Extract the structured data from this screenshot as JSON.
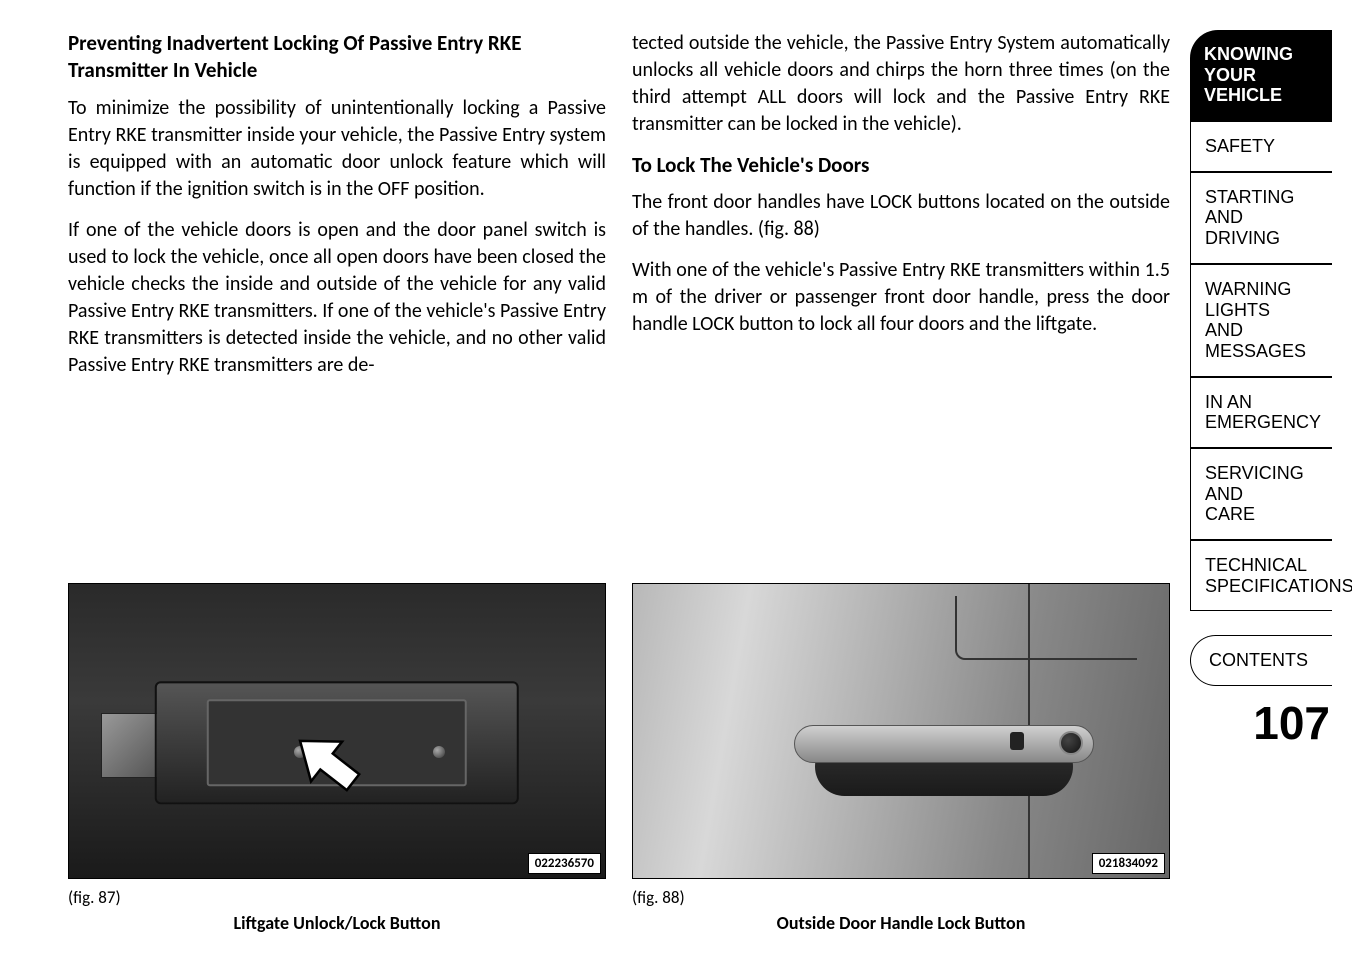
{
  "page_number": "107",
  "sidebar": {
    "active": "KNOWING\nYOUR\nVEHICLE",
    "items": [
      "SAFETY",
      "STARTING\nAND\nDRIVING",
      "WARNING\nLIGHTS\nAND\nMESSAGES",
      "IN AN\nEMERGENCY",
      "SERVICING\nAND\nCARE",
      "TECHNICAL\nSPECIFICATIONS"
    ],
    "contents": "CONTENTS"
  },
  "col1": {
    "heading": "Preventing Inadvertent Locking Of Passive Entry RKE Transmitter In Vehicle",
    "p1": "To minimize the possibility of unintentionally locking a Passive Entry RKE transmitter inside your vehicle, the Passive Entry system is equipped with an automatic door unlock feature which will function if the ignition switch is in the OFF position.",
    "p2_start": "If one of the vehicle doors is open and the door panel switch is used to lock the vehicle, once all open doors have been closed the vehicle checks the inside and outside of the vehicle for any valid Passive Entry RKE transmitters. If one of the vehicle's Passive Entry RKE transmitters is detected inside the vehicle, and no other valid Passive Entry RKE transmitters are de-"
  },
  "col2": {
    "p2_cont": "tected outside the vehicle, the Passive Entry System automatically unlocks all vehicle doors and chirps the horn three times (on the third attempt ALL doors will lock and the Passive Entry RKE transmitter can be locked in the vehicle).",
    "heading2": "To Lock The Vehicle's Doors",
    "p3": "The front door handles have LOCK buttons located on the outside of the handles.  (fig.  88)",
    "p4": "With one of the vehicle's Passive Entry RKE transmitters within 1.5 m of the driver or passenger front door handle, press the door handle LOCK button to lock all four doors and the liftgate."
  },
  "fig87": {
    "label": "(fig. 87)",
    "caption": "Liftgate Unlock/Lock Button",
    "id": "022236570"
  },
  "fig88": {
    "label": "(fig. 88)",
    "caption": "Outside Door Handle Lock Button",
    "id": "021834092"
  },
  "colors": {
    "text": "#000000",
    "bg": "#ffffff",
    "sidebar_active_bg": "#000000",
    "sidebar_active_fg": "#ffffff"
  },
  "typography": {
    "body_fontsize_pt": 15,
    "heading_weight": 700,
    "figcaption_weight": 700,
    "pagenum_fontsize_pt": 34
  }
}
